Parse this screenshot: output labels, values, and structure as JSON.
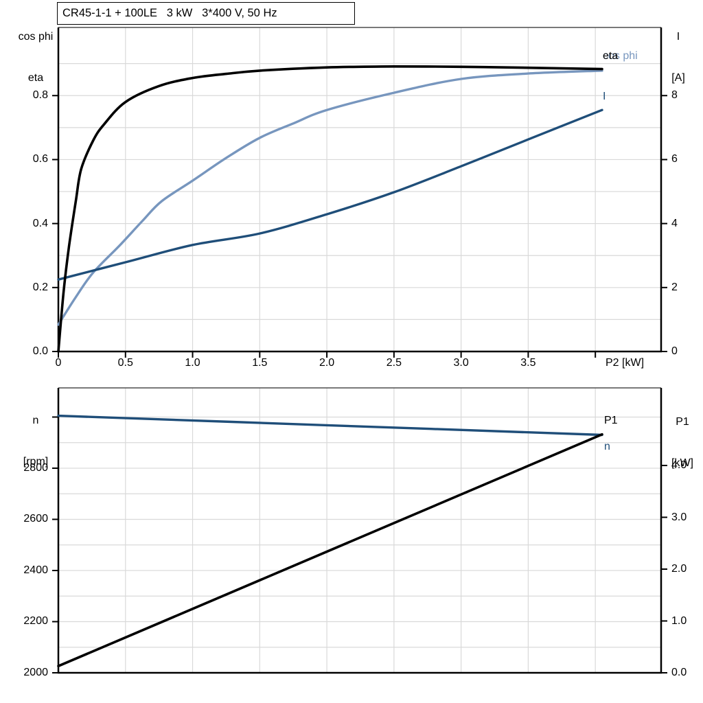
{
  "colors": {
    "black": "#000000",
    "dark_blue": "#1f4e79",
    "light_blue": "#7796be",
    "grid": "#d9d9d9",
    "frame_top": "#4d4d4d"
  },
  "chart_data": [
    {
      "type": "line",
      "title": "CR45-1-1 + 100LE   3 kW   3*400 V, 50 Hz",
      "x_axis": {
        "label": "P2 [kW]",
        "min": 0,
        "max": 4.49,
        "ticks": [
          {
            "v": 0,
            "label": "0"
          },
          {
            "v": 0.5,
            "label": "0.5"
          },
          {
            "v": 1,
            "label": "1.0"
          },
          {
            "v": 1.5,
            "label": "1.5"
          },
          {
            "v": 2,
            "label": "2.0"
          },
          {
            "v": 2.5,
            "label": "2.5"
          },
          {
            "v": 3,
            "label": "3.0"
          },
          {
            "v": 3.5,
            "label": "3.5"
          },
          {
            "v": 4,
            "label": ""
          }
        ],
        "grid": [
          0.5,
          1,
          1.5,
          2,
          2.5,
          3,
          3.5,
          4
        ]
      },
      "y_left": {
        "title_lines": [
          "cos phi",
          "eta"
        ],
        "min": 0,
        "max": 1.013,
        "ticks": [
          {
            "v": 0,
            "label": "0.0"
          },
          {
            "v": 0.2,
            "label": "0.2"
          },
          {
            "v": 0.4,
            "label": "0.4"
          },
          {
            "v": 0.6,
            "label": "0.6"
          },
          {
            "v": 0.8,
            "label": "0.8"
          }
        ],
        "grid": [
          0.1,
          0.2,
          0.3,
          0.4,
          0.5,
          0.6,
          0.7,
          0.8,
          0.9
        ]
      },
      "y_right": {
        "title_lines": [
          "I",
          "[A]"
        ],
        "min": 0,
        "max": 10.13,
        "ticks": [
          {
            "v": 0,
            "label": "0"
          },
          {
            "v": 2,
            "label": "2"
          },
          {
            "v": 4,
            "label": "4"
          },
          {
            "v": 6,
            "label": "6"
          },
          {
            "v": 8,
            "label": "8"
          }
        ],
        "grid": []
      },
      "series": [
        {
          "label": "eta",
          "color": "#000000",
          "axis": "left",
          "width": 3.6,
          "points": [
            [
              0,
              0
            ],
            [
              0.04,
              0.19
            ],
            [
              0.08,
              0.33
            ],
            [
              0.13,
              0.47
            ],
            [
              0.17,
              0.57
            ],
            [
              0.26,
              0.66
            ],
            [
              0.34,
              0.71
            ],
            [
              0.5,
              0.78
            ],
            [
              0.75,
              0.83
            ],
            [
              1.0,
              0.855
            ],
            [
              1.25,
              0.868
            ],
            [
              1.5,
              0.878
            ],
            [
              2.0,
              0.888
            ],
            [
              2.5,
              0.891
            ],
            [
              3.0,
              0.89
            ],
            [
              3.5,
              0.887
            ],
            [
              4.05,
              0.883
            ]
          ]
        },
        {
          "label": "cos phi",
          "color": "#7796be",
          "axis": "left",
          "width": 3.4,
          "points": [
            [
              0,
              0.084
            ],
            [
              0.13,
              0.17
            ],
            [
              0.26,
              0.247
            ],
            [
              0.46,
              0.333
            ],
            [
              0.63,
              0.41
            ],
            [
              0.77,
              0.47
            ],
            [
              1.0,
              0.534
            ],
            [
              1.25,
              0.605
            ],
            [
              1.5,
              0.668
            ],
            [
              1.75,
              0.713
            ],
            [
              2.0,
              0.755
            ],
            [
              2.5,
              0.809
            ],
            [
              3.0,
              0.852
            ],
            [
              3.5,
              0.869
            ],
            [
              4.05,
              0.878
            ]
          ]
        },
        {
          "label": "I",
          "color": "#1f4e79",
          "axis": "right",
          "width": 3.4,
          "points": [
            [
              0,
              2.25
            ],
            [
              0.5,
              2.79
            ],
            [
              1.0,
              3.33
            ],
            [
              1.5,
              3.69
            ],
            [
              2.0,
              4.29
            ],
            [
              2.5,
              4.98
            ],
            [
              3.0,
              5.79
            ],
            [
              3.5,
              6.63
            ],
            [
              4.05,
              7.55
            ]
          ]
        }
      ]
    },
    {
      "type": "line",
      "title": "",
      "x_axis": {
        "label": "",
        "min": 0,
        "max": 4.49,
        "ticks": [],
        "grid": [
          0.5,
          1,
          1.5,
          2,
          2.5,
          3,
          3.5,
          4
        ]
      },
      "y_left": {
        "title_lines": [
          "n",
          "[rpm]"
        ],
        "min": 2000,
        "max": 3114,
        "ticks": [
          {
            "v": 2000,
            "label": "2000"
          },
          {
            "v": 2200,
            "label": "2200"
          },
          {
            "v": 2400,
            "label": "2400"
          },
          {
            "v": 2600,
            "label": "2600"
          },
          {
            "v": 2800,
            "label": "2800"
          },
          {
            "v": 3000,
            "label": ""
          }
        ],
        "grid": [
          2100,
          2200,
          2300,
          2400,
          2500,
          2600,
          2700,
          2800,
          2900,
          3000
        ]
      },
      "y_right": {
        "title_lines": [
          "P1",
          "[kW]"
        ],
        "min": 0,
        "max": 5.497,
        "ticks": [
          {
            "v": 0,
            "label": "0.0"
          },
          {
            "v": 1,
            "label": "1.0"
          },
          {
            "v": 2,
            "label": "2.0"
          },
          {
            "v": 3,
            "label": "3.0"
          },
          {
            "v": 4,
            "label": "4.0"
          }
        ],
        "grid": []
      },
      "series": [
        {
          "label": "n",
          "color": "#1f4e79",
          "axis": "left",
          "width": 3.4,
          "points": [
            [
              0,
              3005
            ],
            [
              2.0,
              2968
            ],
            [
              4.05,
              2930
            ]
          ]
        },
        {
          "label": "P1",
          "color": "#000000",
          "axis": "right",
          "width": 3.6,
          "points": [
            [
              0,
              0.13
            ],
            [
              4.05,
              4.6
            ]
          ]
        }
      ]
    }
  ]
}
